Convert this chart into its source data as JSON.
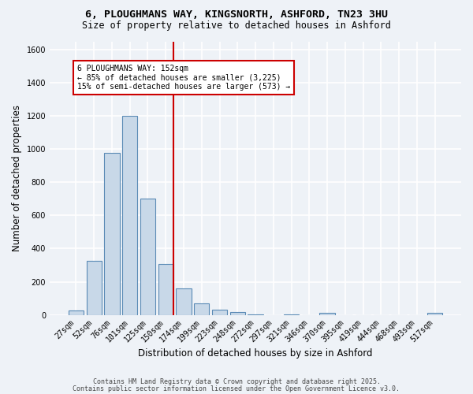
{
  "title1": "6, PLOUGHMANS WAY, KINGSNORTH, ASHFORD, TN23 3HU",
  "title2": "Size of property relative to detached houses in Ashford",
  "xlabel": "Distribution of detached houses by size in Ashford",
  "ylabel": "Number of detached properties",
  "categories": [
    "27sqm",
    "52sqm",
    "76sqm",
    "101sqm",
    "125sqm",
    "150sqm",
    "174sqm",
    "199sqm",
    "223sqm",
    "248sqm",
    "272sqm",
    "297sqm",
    "321sqm",
    "346sqm",
    "370sqm",
    "395sqm",
    "419sqm",
    "444sqm",
    "468sqm",
    "493sqm",
    "517sqm"
  ],
  "values": [
    25,
    325,
    975,
    1200,
    700,
    305,
    160,
    70,
    30,
    15,
    5,
    0,
    5,
    0,
    10,
    0,
    0,
    0,
    0,
    0,
    10
  ],
  "bar_color": "#c8d8e8",
  "bar_edge_color": "#5a8ab5",
  "vline_color": "#cc0000",
  "annotation_text": "6 PLOUGHMANS WAY: 152sqm\n← 85% of detached houses are smaller (3,225)\n15% of semi-detached houses are larger (573) →",
  "annotation_box_color": "white",
  "annotation_box_edge": "#cc0000",
  "ylim": [
    0,
    1650
  ],
  "yticks": [
    0,
    200,
    400,
    600,
    800,
    1000,
    1200,
    1400,
    1600
  ],
  "bg_color": "#eef2f7",
  "grid_color": "white",
  "footer1": "Contains HM Land Registry data © Crown copyright and database right 2025.",
  "footer2": "Contains public sector information licensed under the Open Government Licence v3.0."
}
